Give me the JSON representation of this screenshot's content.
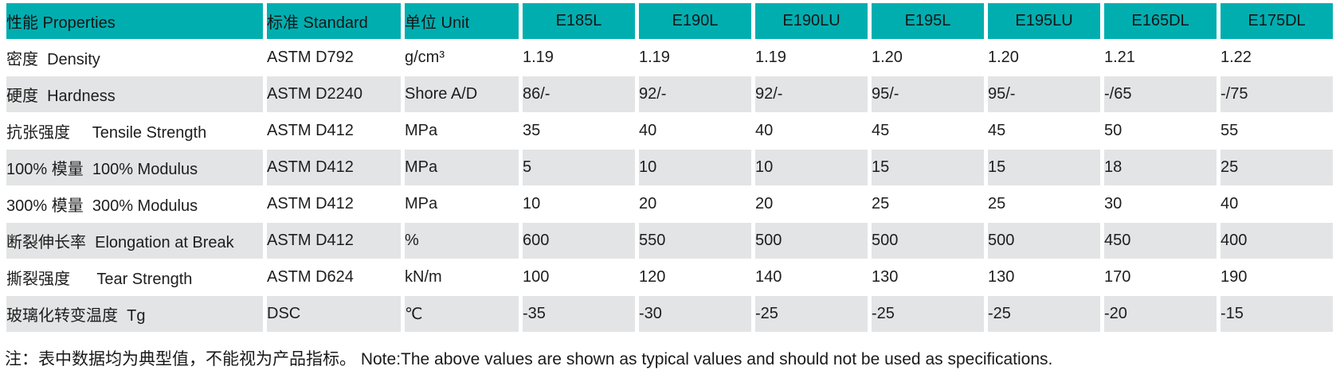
{
  "colors": {
    "header_bg": "#00aeb0",
    "row_alt_bg": "#e3e4e5",
    "text": "#1d1d1d"
  },
  "table": {
    "header": {
      "property": "性能 Properties",
      "standard": "标准 Standard",
      "unit": "单位 Unit",
      "grades": [
        "E185L",
        "E190L",
        "E190LU",
        "E195L",
        "E195LU",
        "E165DL",
        "E175DL"
      ]
    },
    "rows": [
      {
        "property": "密度  Density",
        "standard": "ASTM D792",
        "unit": "g/cm³",
        "values": [
          "1.19",
          "1.19",
          "1.19",
          "1.20",
          "1.20",
          "1.21",
          "1.22"
        ]
      },
      {
        "property": "硬度  Hardness",
        "standard": "ASTM D2240",
        "unit": "Shore A/D",
        "values": [
          "86/-",
          "92/-",
          "92/-",
          "95/-",
          "95/-",
          "-/65",
          "-/75"
        ]
      },
      {
        "property": "抗张强度     Tensile Strength",
        "standard": "ASTM D412",
        "unit": "MPa",
        "values": [
          "35",
          "40",
          "40",
          "45",
          "45",
          "50",
          "55"
        ]
      },
      {
        "property": "100% 模量  100% Modulus",
        "standard": "ASTM D412",
        "unit": "MPa",
        "values": [
          "5",
          "10",
          "10",
          "15",
          "15",
          "18",
          "25"
        ]
      },
      {
        "property": "300% 模量  300% Modulus",
        "standard": "ASTM D412",
        "unit": "MPa",
        "values": [
          "10",
          "20",
          "20",
          "25",
          "25",
          "30",
          "40"
        ]
      },
      {
        "property": "断裂伸长率  Elongation at Break",
        "standard": "ASTM D412",
        "unit": "%",
        "values": [
          "600",
          "550",
          "500",
          "500",
          "500",
          "450",
          "400"
        ]
      },
      {
        "property": "撕裂强度      Tear Strength",
        "standard": "ASTM D624",
        "unit": "kN/m",
        "values": [
          "100",
          "120",
          "140",
          "130",
          "130",
          "170",
          "190"
        ]
      },
      {
        "property": "玻璃化转变温度  Tg",
        "standard": "DSC",
        "unit": "℃",
        "values": [
          "-35",
          "-30",
          "-25",
          "-25",
          "-25",
          "-20",
          "-15"
        ]
      }
    ]
  },
  "note": "注：表中数据均为典型值，不能视为产品指标。 Note:The above values are shown as typical values and should not be used as specifications."
}
